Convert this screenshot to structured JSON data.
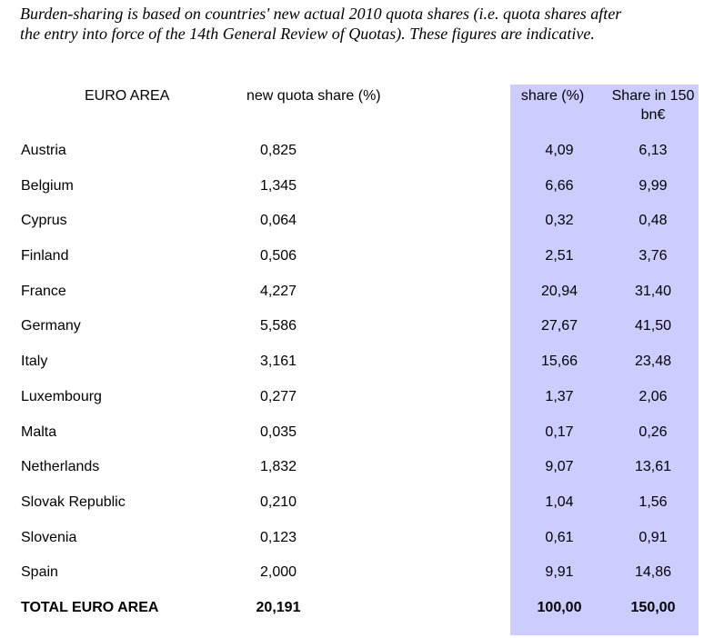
{
  "intro": {
    "line1": "Burden-sharing is based on countries' new actual 2010 quota shares (i.e. quota shares after",
    "line2": "the entry into force of the 14th General Review of Quotas). These figures are indicative."
  },
  "colors": {
    "highlight": "#ccccff"
  },
  "table": {
    "headers": {
      "area": "EURO AREA",
      "quota": "new quota share (%)",
      "share": "share (%)",
      "share150": "Share in 150 bn€"
    },
    "rows": [
      {
        "name": "Austria",
        "quota": "0,825",
        "share": "4,09",
        "share150": "6,13"
      },
      {
        "name": "Belgium",
        "quota": "1,345",
        "share": "6,66",
        "share150": "9,99"
      },
      {
        "name": "Cyprus",
        "quota": "0,064",
        "share": "0,32",
        "share150": "0,48"
      },
      {
        "name": "Finland",
        "quota": "0,506",
        "share": "2,51",
        "share150": "3,76"
      },
      {
        "name": "France",
        "quota": "4,227",
        "share": "20,94",
        "share150": "31,40"
      },
      {
        "name": "Germany",
        "quota": "5,586",
        "share": "27,67",
        "share150": "41,50"
      },
      {
        "name": "Italy",
        "quota": "3,161",
        "share": "15,66",
        "share150": "23,48"
      },
      {
        "name": "Luxembourg",
        "quota": "0,277",
        "share": "1,37",
        "share150": "2,06"
      },
      {
        "name": "Malta",
        "quota": "0,035",
        "share": "0,17",
        "share150": "0,26"
      },
      {
        "name": "Netherlands",
        "quota": "1,832",
        "share": "9,07",
        "share150": "13,61"
      },
      {
        "name": "Slovak Republic",
        "quota": "0,210",
        "share": "1,04",
        "share150": "1,56"
      },
      {
        "name": "Slovenia",
        "quota": "0,123",
        "share": "0,61",
        "share150": "0,91"
      },
      {
        "name": "Spain",
        "quota": "2,000",
        "share": "9,91",
        "share150": "14,86"
      }
    ],
    "total": {
      "name": "TOTAL EURO AREA",
      "quota": "20,191",
      "share": "100,00",
      "share150": "150,00"
    }
  }
}
